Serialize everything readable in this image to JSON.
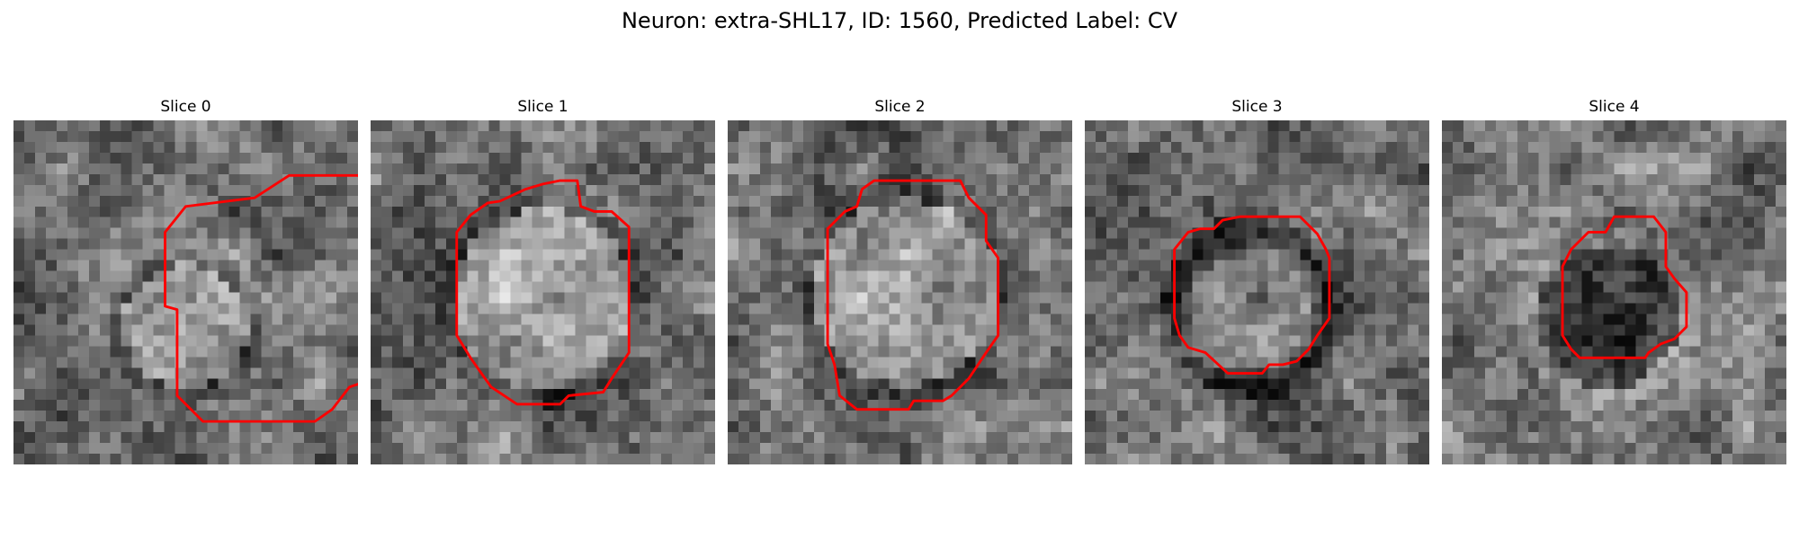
{
  "figure": {
    "title": "Neuron: extra-SHL17, ID: 1560, Predicted Label: CV"
  },
  "style": {
    "contour_color": "#ff0000"
  },
  "slices": [
    {
      "title": "Slice 0",
      "appearance": {
        "seed": 11,
        "blob_center": [
          0.5,
          0.6
        ],
        "blob_radius": 0.18,
        "blob_tone": "bright"
      },
      "contour": [
        [
          14,
          4.5
        ],
        [
          16,
          3.2
        ],
        [
          20,
          3.2
        ],
        [
          21.8,
          5
        ],
        [
          21.8,
          7
        ],
        [
          22.6,
          8
        ],
        [
          22.6,
          13.5
        ],
        [
          21,
          15
        ],
        [
          19.5,
          15.5
        ],
        [
          18.5,
          16.8
        ],
        [
          17.5,
          17.5
        ],
        [
          11,
          17.5
        ],
        [
          9.5,
          16
        ],
        [
          9.5,
          11
        ],
        [
          8.8,
          10.8
        ],
        [
          8.8,
          6.5
        ],
        [
          10,
          5
        ]
      ]
    },
    {
      "title": "Slice 1",
      "appearance": {
        "seed": 23,
        "blob_center": [
          0.5,
          0.52
        ],
        "blob_radius": 0.26,
        "blob_tone": "bright"
      },
      "contour": [
        [
          11,
          3.5
        ],
        [
          12,
          3.5
        ],
        [
          12.2,
          5
        ],
        [
          13,
          5.3
        ],
        [
          14,
          5.3
        ],
        [
          15,
          6.2
        ],
        [
          15,
          13.5
        ],
        [
          14,
          15
        ],
        [
          13.5,
          15.8
        ],
        [
          11.5,
          16
        ],
        [
          11,
          16.5
        ],
        [
          8.5,
          16.5
        ],
        [
          7,
          15.5
        ],
        [
          6.5,
          14.8
        ],
        [
          5.8,
          13.8
        ],
        [
          5,
          12.5
        ],
        [
          5,
          11.5
        ],
        [
          5,
          6.5
        ],
        [
          5.8,
          5.5
        ],
        [
          6.8,
          4.8
        ],
        [
          7.5,
          4.7
        ],
        [
          9,
          4
        ],
        [
          10,
          3.7
        ]
      ]
    },
    {
      "title": "Slice 2",
      "appearance": {
        "seed": 37,
        "blob_center": [
          0.52,
          0.5
        ],
        "blob_radius": 0.27,
        "blob_tone": "bright"
      },
      "contour": [
        [
          8.5,
          3.5
        ],
        [
          13.5,
          3.5
        ],
        [
          14,
          4.5
        ],
        [
          15,
          5.5
        ],
        [
          15,
          7
        ],
        [
          15.7,
          8
        ],
        [
          15.7,
          12.5
        ],
        [
          15,
          13.5
        ],
        [
          14,
          15
        ],
        [
          13,
          16
        ],
        [
          12.5,
          16.3
        ],
        [
          10.8,
          16.3
        ],
        [
          10.5,
          16.8
        ],
        [
          7.5,
          16.8
        ],
        [
          6.5,
          16
        ],
        [
          6.2,
          14.2
        ],
        [
          5.8,
          13
        ],
        [
          5.8,
          12.5
        ],
        [
          5.8,
          6.3
        ],
        [
          6.8,
          5.3
        ],
        [
          7.5,
          5
        ],
        [
          7.8,
          4
        ]
      ]
    },
    {
      "title": "Slice 3",
      "appearance": {
        "seed": 49,
        "blob_center": [
          0.48,
          0.55
        ],
        "blob_radius": 0.2,
        "blob_tone": "ring"
      },
      "contour": [
        [
          9,
          5.6
        ],
        [
          12.5,
          5.6
        ],
        [
          13.5,
          6.6
        ],
        [
          14,
          7.5
        ],
        [
          14.2,
          8
        ],
        [
          14.2,
          11.5
        ],
        [
          13.5,
          12.5
        ],
        [
          13,
          13.3
        ],
        [
          12.3,
          14
        ],
        [
          11.5,
          14.2
        ],
        [
          10.7,
          14.2
        ],
        [
          10.3,
          14.7
        ],
        [
          8.3,
          14.7
        ],
        [
          7,
          13.5
        ],
        [
          6,
          13.2
        ],
        [
          5.5,
          12.5
        ],
        [
          5.2,
          11.5
        ],
        [
          5.2,
          8.5
        ],
        [
          5.2,
          7.5
        ],
        [
          6,
          6.5
        ],
        [
          6.7,
          6.3
        ],
        [
          7.5,
          6.3
        ],
        [
          8,
          5.8
        ]
      ]
    },
    {
      "title": "Slice 4",
      "appearance": {
        "seed": 61,
        "blob_center": [
          0.48,
          0.57
        ],
        "blob_radius": 0.18,
        "blob_tone": "dark"
      },
      "contour": [
        [
          10,
          5.6
        ],
        [
          12.3,
          5.6
        ],
        [
          13,
          6.5
        ],
        [
          13,
          8.5
        ],
        [
          13.5,
          9.2
        ],
        [
          14.2,
          10
        ],
        [
          14.2,
          12
        ],
        [
          13.5,
          12.7
        ],
        [
          12.7,
          13
        ],
        [
          12,
          13.5
        ],
        [
          11.8,
          13.8
        ],
        [
          8,
          13.8
        ],
        [
          7.5,
          13.3
        ],
        [
          7,
          12.5
        ],
        [
          7,
          8.5
        ],
        [
          7.5,
          7.5
        ],
        [
          8.5,
          6.5
        ],
        [
          9.5,
          6.5
        ]
      ]
    }
  ]
}
